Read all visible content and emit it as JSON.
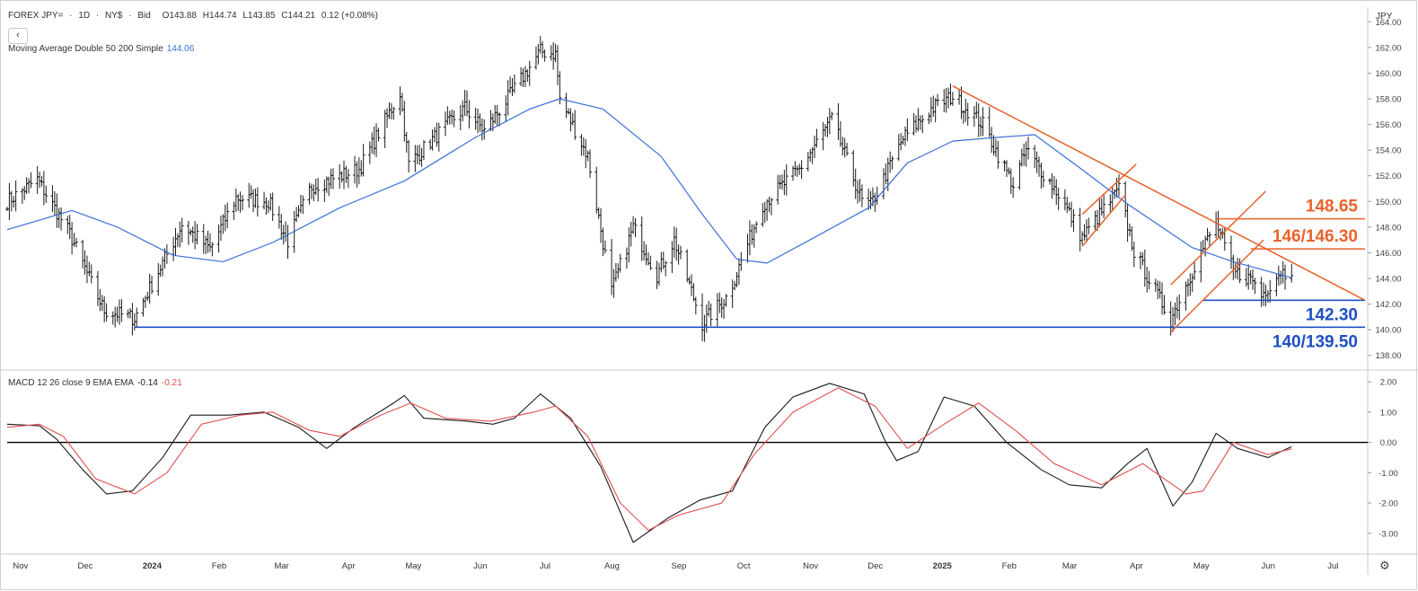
{
  "header": {
    "symbol": "FOREX JPY=",
    "sep": "·",
    "interval": "1D",
    "exchange": "NY$",
    "price_type": "Bid",
    "open": "O143.88",
    "high": "H144.74",
    "low": "L143.85",
    "close": "C144.21",
    "change": "0.12 (+0.08%)"
  },
  "back_button": "‹",
  "ma_indicator": {
    "label": "Moving Average Double 50 200 Simple",
    "value": "144.06"
  },
  "macd_indicator": {
    "label": "MACD 12 26 close 9 EMA EMA",
    "macd_value": "-0.14",
    "signal_value": "-0.21"
  },
  "unit": "JPY",
  "settings_icon": "gear-icon",
  "colors": {
    "bars": "#1a1a1a",
    "ma": "#3a6fd8",
    "trend_orange": "#e8622a",
    "support_blue": "#1f4fc4",
    "macd_line": "#1a1a1a",
    "signal_line": "#e05050"
  },
  "chart_data": [
    {
      "type": "ohlc",
      "title": "",
      "xlabel": "",
      "ylabel": "",
      "ylim": [
        137,
        165
      ],
      "x_tick_labels": [
        "Nov",
        "Dec",
        "2024",
        "Feb",
        "Mar",
        "Apr",
        "May",
        "Jun",
        "Jul",
        "Aug",
        "Sep",
        "Oct",
        "Nov",
        "Dec",
        "2025",
        "Feb",
        "Mar",
        "Apr",
        "May",
        "Jun",
        "Jul"
      ],
      "y_ticks": [
        "164.00",
        "162.00",
        "160.00",
        "158.00",
        "156.00",
        "154.00",
        "152.00",
        "150.00",
        "148.00",
        "146.00",
        "144.00",
        "142.00",
        "140.00",
        "138.00"
      ],
      "price_path": [
        [
          "2023-10-30",
          150.0
        ],
        [
          "2023-11-13",
          151.7
        ],
        [
          "2023-11-28",
          147.5
        ],
        [
          "2023-12-07",
          144.0
        ],
        [
          "2023-12-14",
          141.5
        ],
        [
          "2023-12-28",
          140.9
        ],
        [
          "2024-01-10",
          145.2
        ],
        [
          "2024-01-19",
          148.2
        ],
        [
          "2024-02-01",
          146.3
        ],
        [
          "2024-02-13",
          150.3
        ],
        [
          "2024-02-28",
          150.0
        ],
        [
          "2024-03-08",
          146.9
        ],
        [
          "2024-03-19",
          151.2
        ],
        [
          "2024-04-10",
          152.5
        ],
        [
          "2024-04-29",
          158.5
        ],
        [
          "2024-05-03",
          152.9
        ],
        [
          "2024-05-15",
          155.0
        ],
        [
          "2024-05-29",
          157.3
        ],
        [
          "2024-06-07",
          155.5
        ],
        [
          "2024-06-20",
          158.5
        ],
        [
          "2024-07-03",
          161.7
        ],
        [
          "2024-07-10",
          161.5
        ],
        [
          "2024-07-12",
          158.0
        ],
        [
          "2024-07-25",
          153.5
        ],
        [
          "2024-08-05",
          143.0
        ],
        [
          "2024-08-15",
          148.0
        ],
        [
          "2024-08-26",
          144.3
        ],
        [
          "2024-09-03",
          147.0
        ],
        [
          "2024-09-16",
          140.5
        ],
        [
          "2024-09-27",
          142.5
        ],
        [
          "2024-10-01",
          144.0
        ],
        [
          "2024-10-14",
          149.8
        ],
        [
          "2024-10-31",
          152.5
        ],
        [
          "2024-11-15",
          156.4
        ],
        [
          "2024-11-29",
          150.0
        ],
        [
          "2024-12-03",
          149.7
        ],
        [
          "2024-12-18",
          154.9
        ],
        [
          "2024-12-31",
          157.2
        ],
        [
          "2025-01-10",
          158.2
        ],
        [
          "2025-01-24",
          156.0
        ],
        [
          "2025-02-07",
          151.3
        ],
        [
          "2025-02-13",
          154.0
        ],
        [
          "2025-02-28",
          150.6
        ],
        [
          "2025-03-11",
          147.2
        ],
        [
          "2025-03-28",
          150.9
        ],
        [
          "2025-04-04",
          146.1
        ],
        [
          "2025-04-21",
          140.8
        ],
        [
          "2025-05-02",
          145.0
        ],
        [
          "2025-05-12",
          148.4
        ],
        [
          "2025-05-20",
          144.5
        ],
        [
          "2025-05-29",
          143.9
        ],
        [
          "2025-06-02",
          142.7
        ],
        [
          "2025-06-11",
          144.6
        ],
        [
          "2025-06-16",
          144.21
        ]
      ],
      "series": [
        {
          "name": "Moving Average Double 50 200 Simple",
          "last_value": 144.06,
          "values": [
            [
              "2023-10-30",
              147.8
            ],
            [
              "2023-11-29",
              149.3
            ],
            [
              "2023-12-20",
              148.0
            ],
            [
              "2024-01-15",
              145.8
            ],
            [
              "2024-02-07",
              145.3
            ],
            [
              "2024-03-01",
              146.8
            ],
            [
              "2024-04-01",
              149.5
            ],
            [
              "2024-05-01",
              151.6
            ],
            [
              "2024-06-03",
              155.0
            ],
            [
              "2024-06-28",
              157.2
            ],
            [
              "2024-07-12",
              158.0
            ],
            [
              "2024-08-01",
              157.2
            ],
            [
              "2024-08-28",
              153.5
            ],
            [
              "2024-09-16",
              149.0
            ],
            [
              "2024-10-02",
              145.5
            ],
            [
              "2024-10-16",
              145.2
            ],
            [
              "2024-11-07",
              147.2
            ],
            [
              "2024-12-02",
              149.5
            ],
            [
              "2024-12-20",
              153.0
            ],
            [
              "2025-01-10",
              154.7
            ],
            [
              "2025-01-31",
              155.0
            ],
            [
              "2025-02-17",
              155.2
            ],
            [
              "2025-03-10",
              152.6
            ],
            [
              "2025-04-01",
              149.8
            ],
            [
              "2025-05-01",
              146.4
            ],
            [
              "2025-05-20",
              145.3
            ],
            [
              "2025-06-16",
              144.06
            ]
          ]
        }
      ],
      "annotations": [
        {
          "text": "148.65",
          "kind": "resistance",
          "y": 148.65,
          "color": "#e8622a"
        },
        {
          "text": "146/146.30",
          "kind": "resistance",
          "y": 146.3,
          "color": "#e8622a"
        },
        {
          "text": "142.30",
          "kind": "support",
          "y": 142.3,
          "color": "#1f4fc4"
        },
        {
          "text": "140/139.50",
          "kind": "support",
          "y": 140.2,
          "color": "#1f4fc4"
        }
      ],
      "lines": [
        {
          "kind": "support",
          "from": [
            "2023-12-28",
            140.2
          ],
          "to": [
            "2025-07-20",
            140.2
          ],
          "color": "#1f4fc4"
        },
        {
          "kind": "support",
          "from": [
            "2025-05-06",
            142.3
          ],
          "to": [
            "2025-07-20",
            142.3
          ],
          "color": "#1f4fc4"
        },
        {
          "kind": "resistance",
          "from": [
            "2025-05-12",
            148.65
          ],
          "to": [
            "2025-07-20",
            148.65
          ],
          "color": "#e8622a"
        },
        {
          "kind": "resistance",
          "from": [
            "2025-05-28",
            146.3
          ],
          "to": [
            "2025-07-20",
            146.3
          ],
          "color": "#e8622a"
        },
        {
          "kind": "downtrend",
          "from": [
            "2025-01-10",
            159.0
          ],
          "to": [
            "2025-07-20",
            142.3
          ],
          "color": "#e8622a"
        },
        {
          "kind": "channel",
          "from": [
            "2025-03-11",
            146.5
          ],
          "to": [
            "2025-03-31",
            150.5
          ],
          "color": "#e8622a"
        },
        {
          "kind": "channel",
          "from": [
            "2025-03-11",
            149.0
          ],
          "to": [
            "2025-04-05",
            152.9
          ],
          "color": "#e8622a"
        },
        {
          "kind": "channel",
          "from": [
            "2025-04-21",
            139.8
          ],
          "to": [
            "2025-06-03",
            147.0
          ],
          "color": "#e8622a"
        },
        {
          "kind": "channel",
          "from": [
            "2025-04-21",
            143.5
          ],
          "to": [
            "2025-06-04",
            150.8
          ],
          "color": "#e8622a"
        }
      ]
    },
    {
      "type": "line",
      "title": "",
      "xlabel": "",
      "ylabel": "",
      "ylim": [
        -3.6,
        2.3
      ],
      "y_ticks": [
        "2.00",
        "1.00",
        "0.00",
        "-1.00",
        "-2.00",
        "-3.00"
      ],
      "zero_line": true,
      "series": [
        {
          "name": "MACD",
          "last_value": -0.14,
          "values": [
            [
              "2023-10-30",
              0.6
            ],
            [
              "2023-11-14",
              0.55
            ],
            [
              "2023-11-22",
              0.1
            ],
            [
              "2023-12-04",
              -0.9
            ],
            [
              "2023-12-15",
              -1.7
            ],
            [
              "2023-12-27",
              -1.6
            ],
            [
              "2024-01-10",
              -0.5
            ],
            [
              "2024-01-23",
              0.9
            ],
            [
              "2024-02-10",
              0.9
            ],
            [
              "2024-02-26",
              1.0
            ],
            [
              "2024-03-13",
              0.5
            ],
            [
              "2024-03-26",
              -0.2
            ],
            [
              "2024-04-08",
              0.5
            ],
            [
              "2024-04-26",
              1.3
            ],
            [
              "2024-05-01",
              1.55
            ],
            [
              "2024-05-10",
              0.8
            ],
            [
              "2024-05-30",
              0.7
            ],
            [
              "2024-06-11",
              0.6
            ],
            [
              "2024-06-21",
              0.8
            ],
            [
              "2024-07-03",
              1.6
            ],
            [
              "2024-07-17",
              0.8
            ],
            [
              "2024-07-31",
              -0.8
            ],
            [
              "2024-08-15",
              -3.3
            ],
            [
              "2024-08-31",
              -2.5
            ],
            [
              "2024-09-15",
              -1.9
            ],
            [
              "2024-09-30",
              -1.6
            ],
            [
              "2024-10-15",
              0.5
            ],
            [
              "2024-10-28",
              1.5
            ],
            [
              "2024-11-14",
              1.95
            ],
            [
              "2024-11-30",
              1.6
            ],
            [
              "2024-12-10",
              0.0
            ],
            [
              "2024-12-15",
              -0.6
            ],
            [
              "2024-12-25",
              -0.3
            ],
            [
              "2025-01-06",
              1.5
            ],
            [
              "2025-01-20",
              1.2
            ],
            [
              "2025-02-04",
              0.0
            ],
            [
              "2025-02-20",
              -0.9
            ],
            [
              "2025-03-05",
              -1.4
            ],
            [
              "2025-03-20",
              -1.5
            ],
            [
              "2025-04-01",
              -0.7
            ],
            [
              "2025-04-10",
              -0.2
            ],
            [
              "2025-04-22",
              -2.1
            ],
            [
              "2025-05-01",
              -1.3
            ],
            [
              "2025-05-12",
              0.3
            ],
            [
              "2025-05-22",
              -0.2
            ],
            [
              "2025-06-05",
              -0.5
            ],
            [
              "2025-06-16",
              -0.14
            ]
          ]
        },
        {
          "name": "Signal",
          "last_value": -0.21,
          "values": [
            [
              "2023-10-30",
              0.5
            ],
            [
              "2023-11-14",
              0.6
            ],
            [
              "2023-11-25",
              0.2
            ],
            [
              "2023-12-10",
              -1.2
            ],
            [
              "2023-12-28",
              -1.7
            ],
            [
              "2024-01-12",
              -1.0
            ],
            [
              "2024-01-28",
              0.6
            ],
            [
              "2024-02-15",
              0.9
            ],
            [
              "2024-03-01",
              1.0
            ],
            [
              "2024-03-18",
              0.4
            ],
            [
              "2024-04-01",
              0.2
            ],
            [
              "2024-04-20",
              0.9
            ],
            [
              "2024-05-04",
              1.3
            ],
            [
              "2024-05-20",
              0.8
            ],
            [
              "2024-06-10",
              0.7
            ],
            [
              "2024-06-30",
              1.0
            ],
            [
              "2024-07-10",
              1.2
            ],
            [
              "2024-07-25",
              0.2
            ],
            [
              "2024-08-09",
              -2.0
            ],
            [
              "2024-08-22",
              -2.9
            ],
            [
              "2024-09-05",
              -2.4
            ],
            [
              "2024-09-25",
              -2.0
            ],
            [
              "2024-10-10",
              -0.4
            ],
            [
              "2024-10-28",
              1.0
            ],
            [
              "2024-11-18",
              1.8
            ],
            [
              "2024-12-05",
              1.2
            ],
            [
              "2024-12-20",
              -0.2
            ],
            [
              "2025-01-06",
              0.6
            ],
            [
              "2025-01-22",
              1.3
            ],
            [
              "2025-02-08",
              0.4
            ],
            [
              "2025-02-26",
              -0.7
            ],
            [
              "2025-03-20",
              -1.4
            ],
            [
              "2025-04-08",
              -0.7
            ],
            [
              "2025-04-28",
              -1.7
            ],
            [
              "2025-05-06",
              -1.6
            ],
            [
              "2025-05-20",
              0.0
            ],
            [
              "2025-06-05",
              -0.4
            ],
            [
              "2025-06-16",
              -0.21
            ]
          ]
        }
      ]
    }
  ]
}
